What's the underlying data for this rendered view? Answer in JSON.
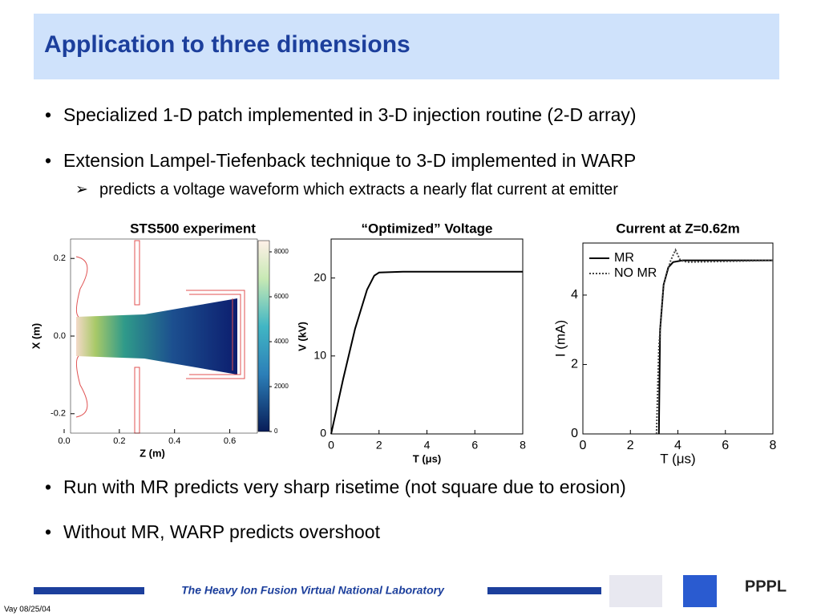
{
  "header": {
    "title": "Application to three dimensions"
  },
  "bullets": [
    "Specialized 1-D patch implemented in 3-D injection routine (2-D array)",
    "Extension Lampel-Tiefenback technique to 3-D implemented in WARP"
  ],
  "sub_bullet": "predicts a voltage waveform which extracts a nearly flat current at emitter",
  "bullets_after": [
    "Run with MR predicts very sharp risetime (not square due to erosion)",
    "Without MR, WARP predicts overshoot"
  ],
  "figures": [
    {
      "title": "STS500 experiment",
      "xlabel": "Z (m)",
      "ylabel": "X (m)",
      "xlim": [
        0,
        0.7
      ],
      "ylim": [
        -0.25,
        0.25
      ],
      "xticks": [
        {
          "value": 0,
          "label": "0.0"
        },
        0.2,
        0.4,
        0.6
      ],
      "yticks": [
        {
          "value": -0.2,
          "label": "-0.2"
        },
        {
          "value": 0,
          "label": "0.0"
        },
        0.2
      ],
      "clim": [
        0,
        8500
      ],
      "cticks": [
        0,
        2000,
        4000,
        6000,
        8000
      ]
    },
    {
      "title": "“Optimized” Voltage",
      "xlabel": "T (μs)",
      "ylabel": "V (kV)",
      "xlim": [
        0,
        8
      ],
      "ylim": [
        0,
        25
      ],
      "xticks": [
        0,
        2,
        4,
        6,
        8
      ],
      "yticks": [
        0,
        10,
        20
      ],
      "series": [
        {
          "color": "#000000",
          "x": [
            0,
            0.5,
            1,
            1.5,
            1.8,
            2,
            3,
            8
          ],
          "values": [
            0,
            7,
            13.5,
            18.5,
            20.3,
            20.7,
            20.8,
            20.8
          ]
        }
      ]
    },
    {
      "title": "Current at Z=0.62m",
      "xlabel": "T (μs)",
      "ylabel": "I (mA)",
      "xlim": [
        0,
        8
      ],
      "ylim": [
        0,
        5.5
      ],
      "xticks": [
        0,
        2,
        4,
        6,
        8
      ],
      "yticks": [
        0,
        2,
        4
      ],
      "series": [
        {
          "name": "MR",
          "color": "#000000",
          "dash": false,
          "x": [
            3.2,
            3.25,
            3.4,
            3.6,
            3.8,
            4.2,
            8
          ],
          "values": [
            0,
            3,
            4.3,
            4.8,
            4.95,
            5,
            5
          ]
        },
        {
          "name": "NO MR",
          "color": "#444444",
          "dash": true,
          "x": [
            3.1,
            3.2,
            3.4,
            3.7,
            3.9,
            4.1,
            4.4,
            8
          ],
          "values": [
            0,
            2.5,
            4.3,
            5.0,
            5.3,
            5.0,
            4.95,
            5.0
          ]
        }
      ]
    }
  ],
  "footer": {
    "lab": "The Heavy Ion Fusion Virtual National Laboratory",
    "date": "Vay 08/25/04",
    "logo": "PPPL"
  }
}
